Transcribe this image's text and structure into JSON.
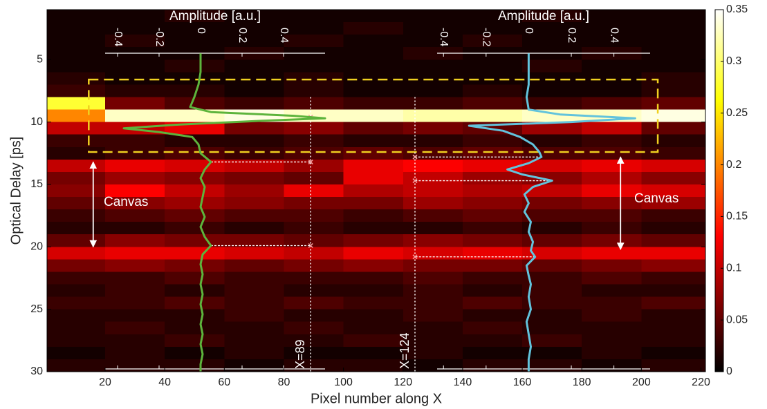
{
  "chart_data": {
    "type": "heatmap",
    "xlabel": "Pixel number along X",
    "ylabel": "Optical Delay [ps]",
    "xlim": [
      0.5,
      221.5
    ],
    "ylim": [
      1,
      30
    ],
    "y_inverted": true,
    "xticks": [
      20,
      40,
      60,
      80,
      100,
      120,
      140,
      160,
      180,
      200,
      220
    ],
    "yticks": [
      5,
      10,
      15,
      20,
      25,
      30
    ],
    "colormap": "hot",
    "colorbar": {
      "lim": [
        0,
        0.35
      ],
      "ticks": [
        0,
        0.05,
        0.1,
        0.15,
        0.2,
        0.25,
        0.3,
        0.35
      ]
    },
    "x": [
      10,
      30,
      50,
      70,
      90,
      110,
      130,
      150,
      170,
      190,
      210
    ],
    "y": [
      1.5,
      2.5,
      3.5,
      4.5,
      5.5,
      6.5,
      7.5,
      8.5,
      9.5,
      10.5,
      11.5,
      12.5,
      13.5,
      14.5,
      15.5,
      16.5,
      17.5,
      18.5,
      19.5,
      20.5,
      21.5,
      22.5,
      23.5,
      24.5,
      25.5,
      26.5,
      27.5,
      28.5,
      29.5
    ],
    "z": [
      [
        0.01,
        0.01,
        0.02,
        0.01,
        0.01,
        0.01,
        0.01,
        0.01,
        0.02,
        0.01,
        0.01
      ],
      [
        0.01,
        0.01,
        0.01,
        0.01,
        0.01,
        0.02,
        0.01,
        0.01,
        0.01,
        0.01,
        0.01
      ],
      [
        0.01,
        0.02,
        0.01,
        0.01,
        0.02,
        0.01,
        0.01,
        0.02,
        0.01,
        0.01,
        0.01
      ],
      [
        0.01,
        0.01,
        0.01,
        0.02,
        0.01,
        0.01,
        0.02,
        0.01,
        0.01,
        0.02,
        0.01
      ],
      [
        0.01,
        0.01,
        0.02,
        0.01,
        0.01,
        0.01,
        0.01,
        0.01,
        0.02,
        0.01,
        0.01
      ],
      [
        0.02,
        0.01,
        0.01,
        0.01,
        0.02,
        0.01,
        0.01,
        0.01,
        0.01,
        0.01,
        0.02
      ],
      [
        0.03,
        0.02,
        0.02,
        0.01,
        0.02,
        0.01,
        0.01,
        0.02,
        0.01,
        0.01,
        0.02
      ],
      [
        0.28,
        0.06,
        0.04,
        0.03,
        0.04,
        0.03,
        0.03,
        0.04,
        0.03,
        0.04,
        0.05
      ],
      [
        0.2,
        0.33,
        0.33,
        0.34,
        0.33,
        0.33,
        0.32,
        0.32,
        0.33,
        0.33,
        0.34
      ],
      [
        0.1,
        0.1,
        0.12,
        0.06,
        0.07,
        0.05,
        0.06,
        0.05,
        0.08,
        0.1,
        0.05
      ],
      [
        0.03,
        0.03,
        0.02,
        0.02,
        0.03,
        0.02,
        0.02,
        0.03,
        0.02,
        0.03,
        0.02
      ],
      [
        0.02,
        0.03,
        0.04,
        0.03,
        0.04,
        0.05,
        0.04,
        0.05,
        0.04,
        0.04,
        0.03
      ],
      [
        0.1,
        0.12,
        0.11,
        0.1,
        0.08,
        0.12,
        0.13,
        0.12,
        0.11,
        0.12,
        0.11
      ],
      [
        0.06,
        0.08,
        0.07,
        0.06,
        0.05,
        0.12,
        0.1,
        0.08,
        0.07,
        0.09,
        0.07
      ],
      [
        0.07,
        0.13,
        0.1,
        0.08,
        0.12,
        0.09,
        0.1,
        0.09,
        0.1,
        0.12,
        0.11
      ],
      [
        0.05,
        0.07,
        0.08,
        0.07,
        0.06,
        0.06,
        0.08,
        0.07,
        0.06,
        0.07,
        0.08
      ],
      [
        0.03,
        0.04,
        0.05,
        0.04,
        0.04,
        0.03,
        0.04,
        0.05,
        0.04,
        0.04,
        0.03
      ],
      [
        0.02,
        0.02,
        0.03,
        0.02,
        0.03,
        0.02,
        0.02,
        0.03,
        0.02,
        0.03,
        0.02
      ],
      [
        0.05,
        0.07,
        0.06,
        0.06,
        0.05,
        0.06,
        0.07,
        0.06,
        0.05,
        0.06,
        0.05
      ],
      [
        0.11,
        0.12,
        0.12,
        0.11,
        0.1,
        0.12,
        0.11,
        0.12,
        0.11,
        0.12,
        0.12
      ],
      [
        0.06,
        0.07,
        0.06,
        0.05,
        0.06,
        0.07,
        0.06,
        0.06,
        0.05,
        0.06,
        0.07
      ],
      [
        0.03,
        0.03,
        0.04,
        0.03,
        0.03,
        0.03,
        0.04,
        0.03,
        0.03,
        0.04,
        0.03
      ],
      [
        0.02,
        0.03,
        0.02,
        0.03,
        0.02,
        0.02,
        0.03,
        0.02,
        0.03,
        0.02,
        0.02
      ],
      [
        0.03,
        0.03,
        0.04,
        0.03,
        0.04,
        0.03,
        0.03,
        0.04,
        0.03,
        0.03,
        0.04
      ],
      [
        0.02,
        0.02,
        0.02,
        0.03,
        0.02,
        0.02,
        0.03,
        0.02,
        0.02,
        0.03,
        0.02
      ],
      [
        0.02,
        0.03,
        0.02,
        0.02,
        0.03,
        0.02,
        0.02,
        0.03,
        0.02,
        0.02,
        0.02
      ],
      [
        0.02,
        0.02,
        0.03,
        0.02,
        0.02,
        0.03,
        0.02,
        0.02,
        0.03,
        0.02,
        0.02
      ],
      [
        0.01,
        0.02,
        0.01,
        0.02,
        0.01,
        0.01,
        0.02,
        0.01,
        0.01,
        0.02,
        0.01
      ],
      [
        0.02,
        0.02,
        0.02,
        0.01,
        0.02,
        0.02,
        0.01,
        0.02,
        0.02,
        0.01,
        0.02
      ]
    ],
    "insets": [
      {
        "title": "Amplitude [a.u.]",
        "xlim": [
          -0.46,
          0.6
        ],
        "xticks": [
          -0.4,
          -0.2,
          0,
          0.2,
          0.4
        ]
      },
      {
        "title": "Amplitude [a.u.]",
        "xlim": [
          -0.43,
          0.57
        ],
        "xticks": [
          -0.4,
          -0.2,
          0,
          0.2,
          0.4
        ]
      }
    ],
    "traces": [
      {
        "color": "#5db43c",
        "delay": [
          4.5,
          6,
          7,
          8,
          8.8,
          9.2,
          9.5,
          9.7,
          9.9,
          10.2,
          10.5,
          10.8,
          11.2,
          11.8,
          12.5,
          13.2,
          13.8,
          14.5,
          15.2,
          16,
          16.8,
          17.6,
          18.4,
          19.2,
          19.9,
          20.6,
          21.4,
          22.2,
          23,
          23.8,
          24.6,
          25.4,
          26.2,
          27,
          27.8,
          28.6,
          29.4,
          30
        ],
        "amplitude": [
          0,
          0,
          -0.01,
          -0.03,
          -0.05,
          0.05,
          0.45,
          0.6,
          0.3,
          -0.1,
          -0.37,
          -0.2,
          -0.04,
          -0.01,
          0,
          0.05,
          0.02,
          0,
          0.02,
          0.01,
          0,
          0.02,
          0,
          0.02,
          0.05,
          0.01,
          0,
          0.01,
          0,
          0.01,
          0,
          0.01,
          0,
          0.01,
          0,
          0.01,
          0,
          0
        ]
      },
      {
        "color": "#62c3dc",
        "delay": [
          4.5,
          6,
          7,
          8,
          9,
          9.4,
          9.7,
          10,
          10.3,
          10.7,
          11.2,
          11.8,
          12.4,
          12.8,
          13.3,
          13.8,
          14.2,
          14.7,
          15.2,
          15.8,
          16.5,
          17.2,
          18,
          18.8,
          19.6,
          20.3,
          20.8,
          21.5,
          22.3,
          23,
          24,
          25,
          26,
          27,
          28,
          29,
          30
        ],
        "amplitude": [
          0,
          0,
          0,
          -0.01,
          0,
          0.15,
          0.5,
          0.2,
          -0.28,
          -0.12,
          -0.04,
          0.02,
          0.05,
          0.06,
          0,
          -0.1,
          -0.03,
          0.11,
          0.02,
          -0.02,
          0,
          -0.02,
          0.01,
          0,
          0.02,
          0.01,
          0.03,
          -0.01,
          0,
          0.01,
          0,
          0.01,
          -0.01,
          0,
          0.01,
          0,
          0
        ]
      }
    ],
    "markers": [
      {
        "x": 89,
        "label": "X=89",
        "picks": [
          9.6,
          13.2,
          19.9
        ]
      },
      {
        "x": 124,
        "label": "X=124",
        "picks": [
          12.8,
          14.7,
          20.8
        ]
      }
    ],
    "roi": {
      "xlim": [
        14.5,
        205.5
      ],
      "ylim": [
        6.6,
        12.4
      ],
      "color": "#f0d020"
    },
    "annotations": [
      {
        "text": "Canvas",
        "x": 16,
        "y": [
          13.2,
          20
        ]
      },
      {
        "text": "Canvas",
        "x": 193,
        "y": [
          12.8,
          20.2
        ]
      }
    ]
  }
}
